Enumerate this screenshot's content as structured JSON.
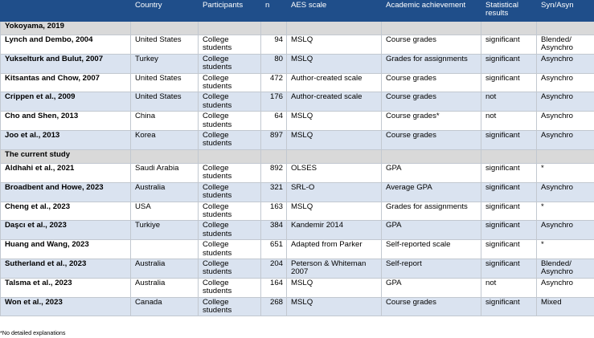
{
  "columns": [
    "",
    "Country",
    "Participants",
    "n",
    "AES scale",
    "Academic achievement",
    "Statistical results",
    "Syn/Asyn"
  ],
  "groups": [
    {
      "title": "Yokoyama, 2019",
      "rows": [
        {
          "study": "Lynch and Dembo, 2004",
          "country": "United States",
          "participants": "College students",
          "n": "94",
          "scale": "MSLQ",
          "achievement": "Course grades",
          "results": "significant",
          "mode": "Blended/ Asynchro"
        },
        {
          "study": "Yukselturk and Bulut, 2007",
          "country": "Turkey",
          "participants": "College students",
          "n": "80",
          "scale": "MSLQ",
          "achievement": "Grades for assignments",
          "results": "significant",
          "mode": "Asynchro"
        },
        {
          "study": "Kitsantas and Chow, 2007",
          "country": "United States",
          "participants": "College students",
          "n": "472",
          "scale": "Author-created scale",
          "achievement": "Course grades",
          "results": "significant",
          "mode": "Asynchro"
        },
        {
          "study": "Crippen et al., 2009",
          "country": "United States",
          "participants": "College students",
          "n": "176",
          "scale": "Author-created scale",
          "achievement": "Course grades",
          "results": "not",
          "mode": "Asynchro"
        },
        {
          "study": "Cho and Shen, 2013",
          "country": "China",
          "participants": "College students",
          "n": "64",
          "scale": "MSLQ",
          "achievement": "Course grades*",
          "results": "not",
          "mode": "Asynchro"
        },
        {
          "study": "Joo et al., 2013",
          "country": "Korea",
          "participants": "College students",
          "n": "897",
          "scale": "MSLQ",
          "achievement": "Course grades",
          "results": "significant",
          "mode": "Asynchro"
        }
      ]
    },
    {
      "title": "The current study",
      "rows": [
        {
          "study": "Aldhahi et al., 2021",
          "country": "Saudi Arabia",
          "participants": "College students",
          "n": "892",
          "scale": "OLSES",
          "achievement": "GPA",
          "results": "significant",
          "mode": "*"
        },
        {
          "study": "Broadbent and Howe, 2023",
          "country": "Australia",
          "participants": "College students",
          "n": "321",
          "scale": "SRL-O",
          "achievement": "Average GPA",
          "results": "significant",
          "mode": "Asynchro"
        },
        {
          "study": "Cheng et al., 2023",
          "country": "USA",
          "participants": "College students",
          "n": "163",
          "scale": "MSLQ",
          "achievement": "Grades for assignments",
          "results": "significant",
          "mode": "*"
        },
        {
          "study": "Daşcı et al., 2023",
          "country": "Turkiye",
          "participants": "College students",
          "n": "384",
          "scale": "Kandemir 2014",
          "achievement": "GPA",
          "results": "significant",
          "mode": "Asynchro"
        },
        {
          "study": "Huang and Wang, 2023",
          "country": "",
          "participants": "College students",
          "n": "651",
          "scale": "Adapted from Parker",
          "achievement": "Self-reported scale",
          "results": "significant",
          "mode": "*"
        },
        {
          "study": "Sutherland et al., 2023",
          "country": "Australia",
          "participants": "College students",
          "n": "204",
          "scale": "Peterson & Whiteman 2007",
          "achievement": "Self-report",
          "results": "significant",
          "mode": "Blended/ Asynchro"
        },
        {
          "study": "Talsma et al., 2023",
          "country": "Australia",
          "participants": "College students",
          "n": "164",
          "scale": "MSLQ",
          "achievement": "GPA",
          "results": "not",
          "mode": "Asynchro"
        },
        {
          "study": "Won et al., 2023",
          "country": "Canada",
          "participants": "College students",
          "n": "268",
          "scale": "MSLQ",
          "achievement": "Course grades",
          "results": "significant",
          "mode": "Mixed"
        }
      ]
    }
  ],
  "footnote": "*No detailed explanations",
  "colors": {
    "header_bg": "#1f4e8a",
    "section_bg": "#d9d9d9",
    "alt_row_bg": "#dae3f0"
  }
}
